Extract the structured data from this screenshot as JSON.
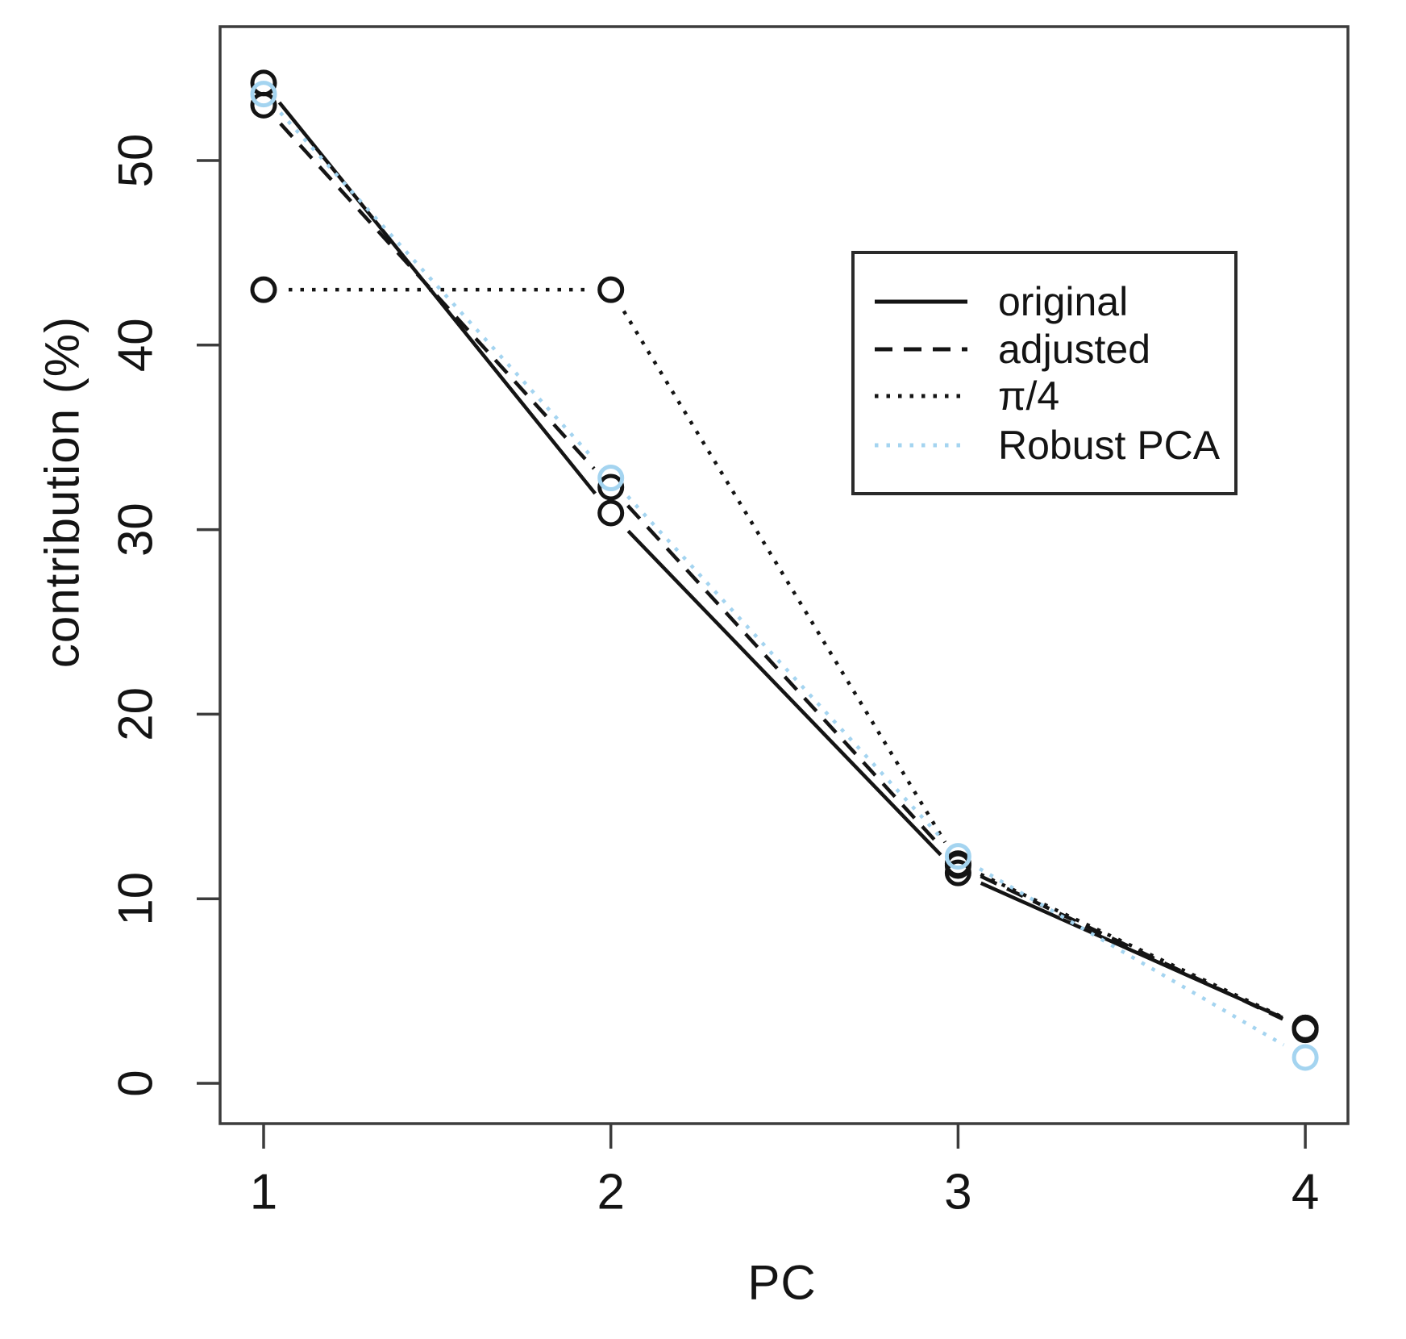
{
  "chart_data": {
    "type": "line",
    "title": "",
    "xlabel": "PC",
    "ylabel": "contribution (%)",
    "x": [
      1,
      2,
      3,
      4
    ],
    "xticks": [
      1,
      2,
      3,
      4
    ],
    "yticks": [
      0,
      10,
      20,
      30,
      40,
      50
    ],
    "xlim": [
      0.87,
      4.12
    ],
    "ylim": [
      -2.2,
      57.3
    ],
    "grid": false,
    "marker": "open-circle",
    "legend_position": "top-right",
    "series": [
      {
        "name": "original",
        "line_style": "solid",
        "color": "#141414",
        "values": [
          54.2,
          30.9,
          11.4,
          3.0
        ]
      },
      {
        "name": "adjusted",
        "line_style": "dashed",
        "color": "#141414",
        "values": [
          53.0,
          32.3,
          11.8,
          2.9
        ]
      },
      {
        "name": "π/4",
        "line_style": "dotted",
        "color": "#141414",
        "values": [
          43.0,
          43.0,
          11.9,
          3.0
        ]
      },
      {
        "name": "Robust PCA",
        "line_style": "dotted",
        "color": "#a4d4f0",
        "values": [
          53.6,
          32.8,
          12.3,
          1.4
        ]
      }
    ]
  },
  "colors": {
    "foreground": "#141414",
    "robust_blue": "#a4d4f0",
    "background": "#ffffff",
    "frame": "#3c3c3c"
  }
}
